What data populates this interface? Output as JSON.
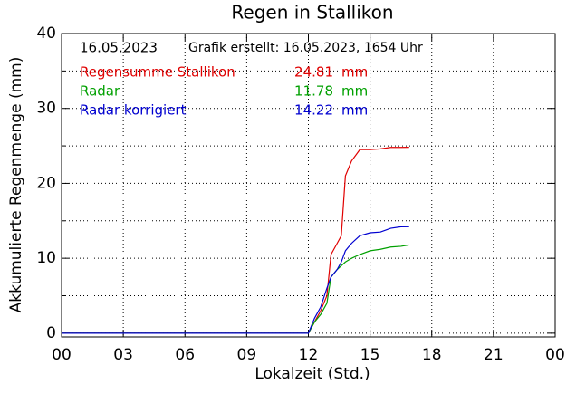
{
  "chart_data": {
    "type": "line",
    "title": "Regen in Stallikon",
    "xlabel": "Lokalzeit (Std.)",
    "ylabel": "Akkumulierte Regenmenge (mm)",
    "annotations": [
      "16.05.2023",
      "Grafik erstellt: 16.05.2023, 1654 Uhr"
    ],
    "unit": "mm",
    "x": [
      0,
      5.8,
      12.0,
      12.3,
      12.6,
      12.9,
      13.1,
      13.4,
      13.6,
      13.8,
      14.1,
      14.5,
      15.0,
      15.5,
      16.0,
      16.5,
      16.9
    ],
    "series": [
      {
        "name": "Regensumme Stallikon",
        "color": "#e00000",
        "total": 24.81,
        "values": [
          0,
          0,
          0,
          1.5,
          3,
          5,
          10.5,
          12,
          13,
          21,
          23,
          24.5,
          24.5,
          24.6,
          24.8,
          24.8,
          24.81
        ]
      },
      {
        "name": "Radar",
        "color": "#00a000",
        "total": 11.78,
        "values": [
          0,
          0,
          0,
          1.5,
          2.5,
          4,
          7.5,
          8.5,
          9,
          9.5,
          10,
          10.5,
          11,
          11.2,
          11.5,
          11.6,
          11.78
        ]
      },
      {
        "name": "Radar korrigiert",
        "color": "#0000d0",
        "total": 14.22,
        "values": [
          0,
          0,
          0,
          2,
          3.5,
          6,
          7.5,
          8.5,
          9.5,
          11,
          12,
          13,
          13.4,
          13.5,
          14,
          14.2,
          14.22
        ]
      }
    ],
    "xlim": [
      0,
      24
    ],
    "xticks": [
      {
        "value": 0,
        "label": "00"
      },
      {
        "value": 3,
        "label": "03"
      },
      {
        "value": 6,
        "label": "06"
      },
      {
        "value": 9,
        "label": "09"
      },
      12,
      15,
      18,
      21,
      {
        "value": 24,
        "label": "00"
      }
    ],
    "ylim": [
      -0.5,
      40
    ],
    "yticks": [
      0,
      10,
      20,
      30,
      40
    ],
    "yminor": [
      5,
      15,
      25,
      35
    ],
    "grid": true
  }
}
